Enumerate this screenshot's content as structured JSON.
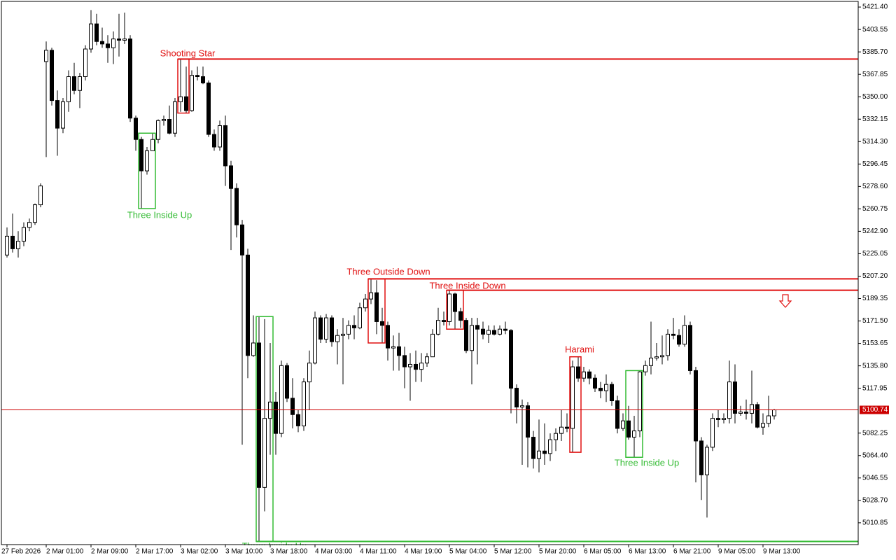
{
  "chart_data": {
    "type": "candlestick",
    "categories": [
      "27 Feb 2026",
      null,
      null,
      null,
      null,
      null,
      null,
      "2 Mar 01:00",
      null,
      null,
      null,
      null,
      null,
      null,
      null,
      "2 Mar 09:00",
      null,
      null,
      null,
      null,
      null,
      null,
      null,
      "2 Mar 17:00",
      null,
      null,
      null,
      null,
      null,
      null,
      null,
      "3 Mar 02:00",
      null,
      null,
      null,
      null,
      null,
      null,
      null,
      "3 Mar 10:00",
      null,
      null,
      null,
      null,
      null,
      null,
      null,
      "3 Mar 18:00",
      null,
      null,
      null,
      null,
      null,
      null,
      null,
      "4 Mar 03:00",
      null,
      null,
      null,
      null,
      null,
      null,
      null,
      "4 Mar 11:00",
      null,
      null,
      null,
      null,
      null,
      null,
      null,
      "4 Mar 19:00",
      null,
      null,
      null,
      null,
      null,
      null,
      null,
      "5 Mar 04:00",
      null,
      null,
      null,
      null,
      null,
      null,
      null,
      "5 Mar 12:00",
      null,
      null,
      null,
      null,
      null,
      null,
      null,
      "5 Mar 20:00",
      null,
      null,
      null,
      null,
      null,
      null,
      null,
      "6 Mar 05:00",
      null,
      null,
      null,
      null,
      null,
      null,
      null,
      "6 Mar 13:00",
      null,
      null,
      null,
      null,
      null,
      null,
      null,
      "6 Mar 21:00",
      null,
      null,
      null,
      null,
      null,
      null,
      null,
      "9 Mar 05:00",
      null,
      null,
      null,
      null,
      null,
      null,
      null,
      "9 Mar 13:00",
      null,
      null
    ],
    "open": [
      5224,
      5239,
      5229,
      5235,
      5246,
      5250,
      5264,
      5378,
      5387,
      5347,
      5325,
      5346,
      5366,
      5355,
      5366,
      5388,
      5408,
      5394,
      5392,
      5389,
      5396,
      5395,
      5396,
      5333,
      5316,
      5291,
      5307,
      5316,
      5331,
      5332,
      5321,
      5346,
      5350,
      5339,
      5367,
      5366,
      5361,
      5320,
      5310,
      5327,
      5295,
      5277,
      5248,
      5224,
      5144,
      5154,
      5039,
      5094,
      5107,
      5082,
      5136,
      5110,
      5097,
      5088,
      5123,
      5138,
      5174,
      5157,
      5174,
      5155,
      5160,
      5161,
      5168,
      5166,
      5182,
      5189,
      5194,
      5171,
      5168,
      5150,
      5151,
      5144,
      5135,
      5137,
      5133,
      5138,
      5143,
      5161,
      5172,
      5171,
      5193,
      5179,
      5172,
      5148,
      5168,
      5165,
      5161,
      5164,
      5161,
      5165,
      5164,
      5118,
      5103,
      5104,
      5079,
      5062,
      5068,
      5066,
      5077,
      5082,
      5087,
      5086,
      5135,
      5126,
      5131,
      5126,
      5118,
      5116,
      5121,
      5108,
      5086,
      5092,
      5079,
      5084,
      5131,
      5136,
      5142,
      5143,
      5144,
      5161,
      5160,
      5153,
      5168,
      5132,
      5076,
      5049,
      5071,
      5094,
      5093,
      5094,
      5123,
      5098,
      5099,
      5098,
      5105,
      5087,
      5090,
      5096
    ],
    "high": [
      5246,
      5257,
      5243,
      5250,
      5253,
      5265,
      5281,
      5394,
      5389,
      5355,
      5349,
      5371,
      5377,
      5369,
      5391,
      5419,
      5416,
      5405,
      5399,
      5402,
      5416,
      5417,
      5399,
      5335,
      5318,
      5310,
      5321,
      5332,
      5335,
      5343,
      5349,
      5380,
      5374,
      5371,
      5374,
      5374,
      5363,
      5324,
      5331,
      5335,
      5299,
      5281,
      5252,
      5229,
      5176,
      5175,
      5173,
      5154,
      5115,
      5140,
      5138,
      5126,
      5101,
      5126,
      5148,
      5179,
      5176,
      5177,
      5176,
      5165,
      5174,
      5172,
      5176,
      5186,
      5193,
      5205,
      5204,
      5182,
      5171,
      5160,
      5162,
      5151,
      5146,
      5148,
      5146,
      5146,
      5165,
      5182,
      5179,
      5196,
      5194,
      5182,
      5174,
      5174,
      5174,
      5171,
      5168,
      5168,
      5168,
      5171,
      5165,
      5121,
      5109,
      5107,
      5084,
      5093,
      5090,
      5082,
      5086,
      5101,
      5098,
      5140,
      5143,
      5135,
      5133,
      5129,
      5123,
      5129,
      5123,
      5112,
      5098,
      5104,
      5096,
      5132,
      5140,
      5171,
      5154,
      5160,
      5165,
      5174,
      5165,
      5176,
      5171,
      5135,
      5079,
      5073,
      5098,
      5101,
      5098,
      5140,
      5137,
      5104,
      5109,
      5132,
      5107,
      5098,
      5112,
      5101.5
    ],
    "low": [
      5222,
      5226,
      5222,
      5231,
      5243,
      5248,
      5262,
      5302,
      5343,
      5303,
      5321,
      5338,
      5352,
      5341,
      5363,
      5385,
      5391,
      5389,
      5377,
      5376,
      5382,
      5392,
      5330,
      5307,
      5261,
      5288,
      5307,
      5313,
      5327,
      5320,
      5318,
      5338,
      5337,
      5338,
      5363,
      5360,
      5318,
      5307,
      5307,
      5279,
      5228,
      5238,
      5073,
      5126,
      5143,
      4996,
      5020,
      5065,
      5065,
      5079,
      5107,
      5086,
      5083,
      5084,
      5101,
      5137,
      5154,
      5154,
      5151,
      5137,
      5121,
      5157,
      5157,
      5165,
      5179,
      5185,
      5161,
      5154,
      5140,
      5132,
      5132,
      5118,
      5108,
      5123,
      5123,
      5135,
      5143,
      5160,
      5168,
      5168,
      5165,
      5166,
      5146,
      5121,
      5137,
      5157,
      5154,
      5160,
      5160,
      5161,
      5098,
      5090,
      5057,
      5055,
      5054,
      5051,
      5057,
      5060,
      5068,
      5076,
      5083,
      5067,
      5123,
      5123,
      5121,
      5115,
      5110,
      5107,
      5104,
      5082,
      5084,
      5077,
      5063,
      5079,
      5128,
      5129,
      5140,
      5137,
      5140,
      5157,
      5151,
      5151,
      5129,
      5043,
      5029,
      5015,
      5068,
      5087,
      5090,
      5090,
      5090,
      5096,
      5093,
      5090,
      5086,
      5081,
      5087,
      5093
    ],
    "close": [
      5239,
      5229,
      5235,
      5246,
      5250,
      5264,
      5279,
      5387,
      5347,
      5325,
      5346,
      5366,
      5355,
      5366,
      5388,
      5408,
      5394,
      5392,
      5389,
      5396,
      5395,
      5396,
      5333,
      5316,
      5291,
      5307,
      5316,
      5331,
      5332,
      5321,
      5346,
      5350,
      5339,
      5367,
      5366,
      5361,
      5320,
      5310,
      5327,
      5295,
      5277,
      5248,
      5224,
      5144,
      5154,
      5039,
      5094,
      5107,
      5082,
      5136,
      5110,
      5097,
      5088,
      5123,
      5138,
      5174,
      5157,
      5174,
      5155,
      5160,
      5161,
      5168,
      5166,
      5182,
      5189,
      5194,
      5171,
      5168,
      5150,
      5151,
      5144,
      5135,
      5137,
      5133,
      5138,
      5143,
      5161,
      5172,
      5171,
      5193,
      5179,
      5172,
      5148,
      5168,
      5165,
      5161,
      5164,
      5161,
      5165,
      5164,
      5118,
      5103,
      5104,
      5079,
      5062,
      5068,
      5066,
      5077,
      5082,
      5087,
      5086,
      5135,
      5126,
      5131,
      5126,
      5118,
      5116,
      5121,
      5108,
      5086,
      5092,
      5079,
      5084,
      5131,
      5136,
      5142,
      5143,
      5144,
      5161,
      5160,
      5153,
      5168,
      5132,
      5076,
      5049,
      5071,
      5094,
      5093,
      5094,
      5123,
      5098,
      5099,
      5098,
      5105,
      5087,
      5090,
      5096,
      5100.74
    ],
    "bull_color": "#ffffff",
    "bear_color": "#000000",
    "wick_color": "#000000",
    "last_price": 5100.74,
    "last_price_color": "#cc0000",
    "ylim": [
      4993.5,
      5425.9
    ],
    "yticks": [
      {
        "value": 5421.4,
        "label": "5421.40"
      },
      5403.55,
      {
        "value": 5385.7,
        "label": "5385.70"
      },
      5367.85,
      {
        "value": 5350,
        "label": "5350.00"
      },
      5332.15,
      {
        "value": 5314.3,
        "label": "5314.30"
      },
      5296.45,
      {
        "value": 5278.6,
        "label": "5278.60"
      },
      5260.75,
      {
        "value": 5242.9,
        "label": "5242.90"
      },
      5225.05,
      {
        "value": 5207.2,
        "label": "5207.20"
      },
      5189.35,
      {
        "value": 5171.5,
        "label": "5171.50"
      },
      5153.65,
      {
        "value": 5135.8,
        "label": "5135.80"
      },
      5117.95,
      5082.25,
      {
        "value": 5064.4,
        "label": "5064.40"
      },
      5046.55,
      {
        "value": 5028.7,
        "label": "5028.70"
      },
      5010.85
    ],
    "annotations": [
      {
        "text": "Shooting Star",
        "color": "#e01010"
      },
      {
        "text": "Three Inside Up",
        "color": "#33bb33"
      },
      {
        "text": "Three Outside Down",
        "color": "#e01010"
      },
      {
        "text": "Three Inside Down",
        "color": "#e01010"
      },
      {
        "text": "Three Inside Up",
        "color": "#33bb33"
      },
      {
        "text": "Harami",
        "color": "#e01010"
      },
      {
        "text": "Three Inside Up",
        "color": "#33bb33"
      }
    ]
  }
}
